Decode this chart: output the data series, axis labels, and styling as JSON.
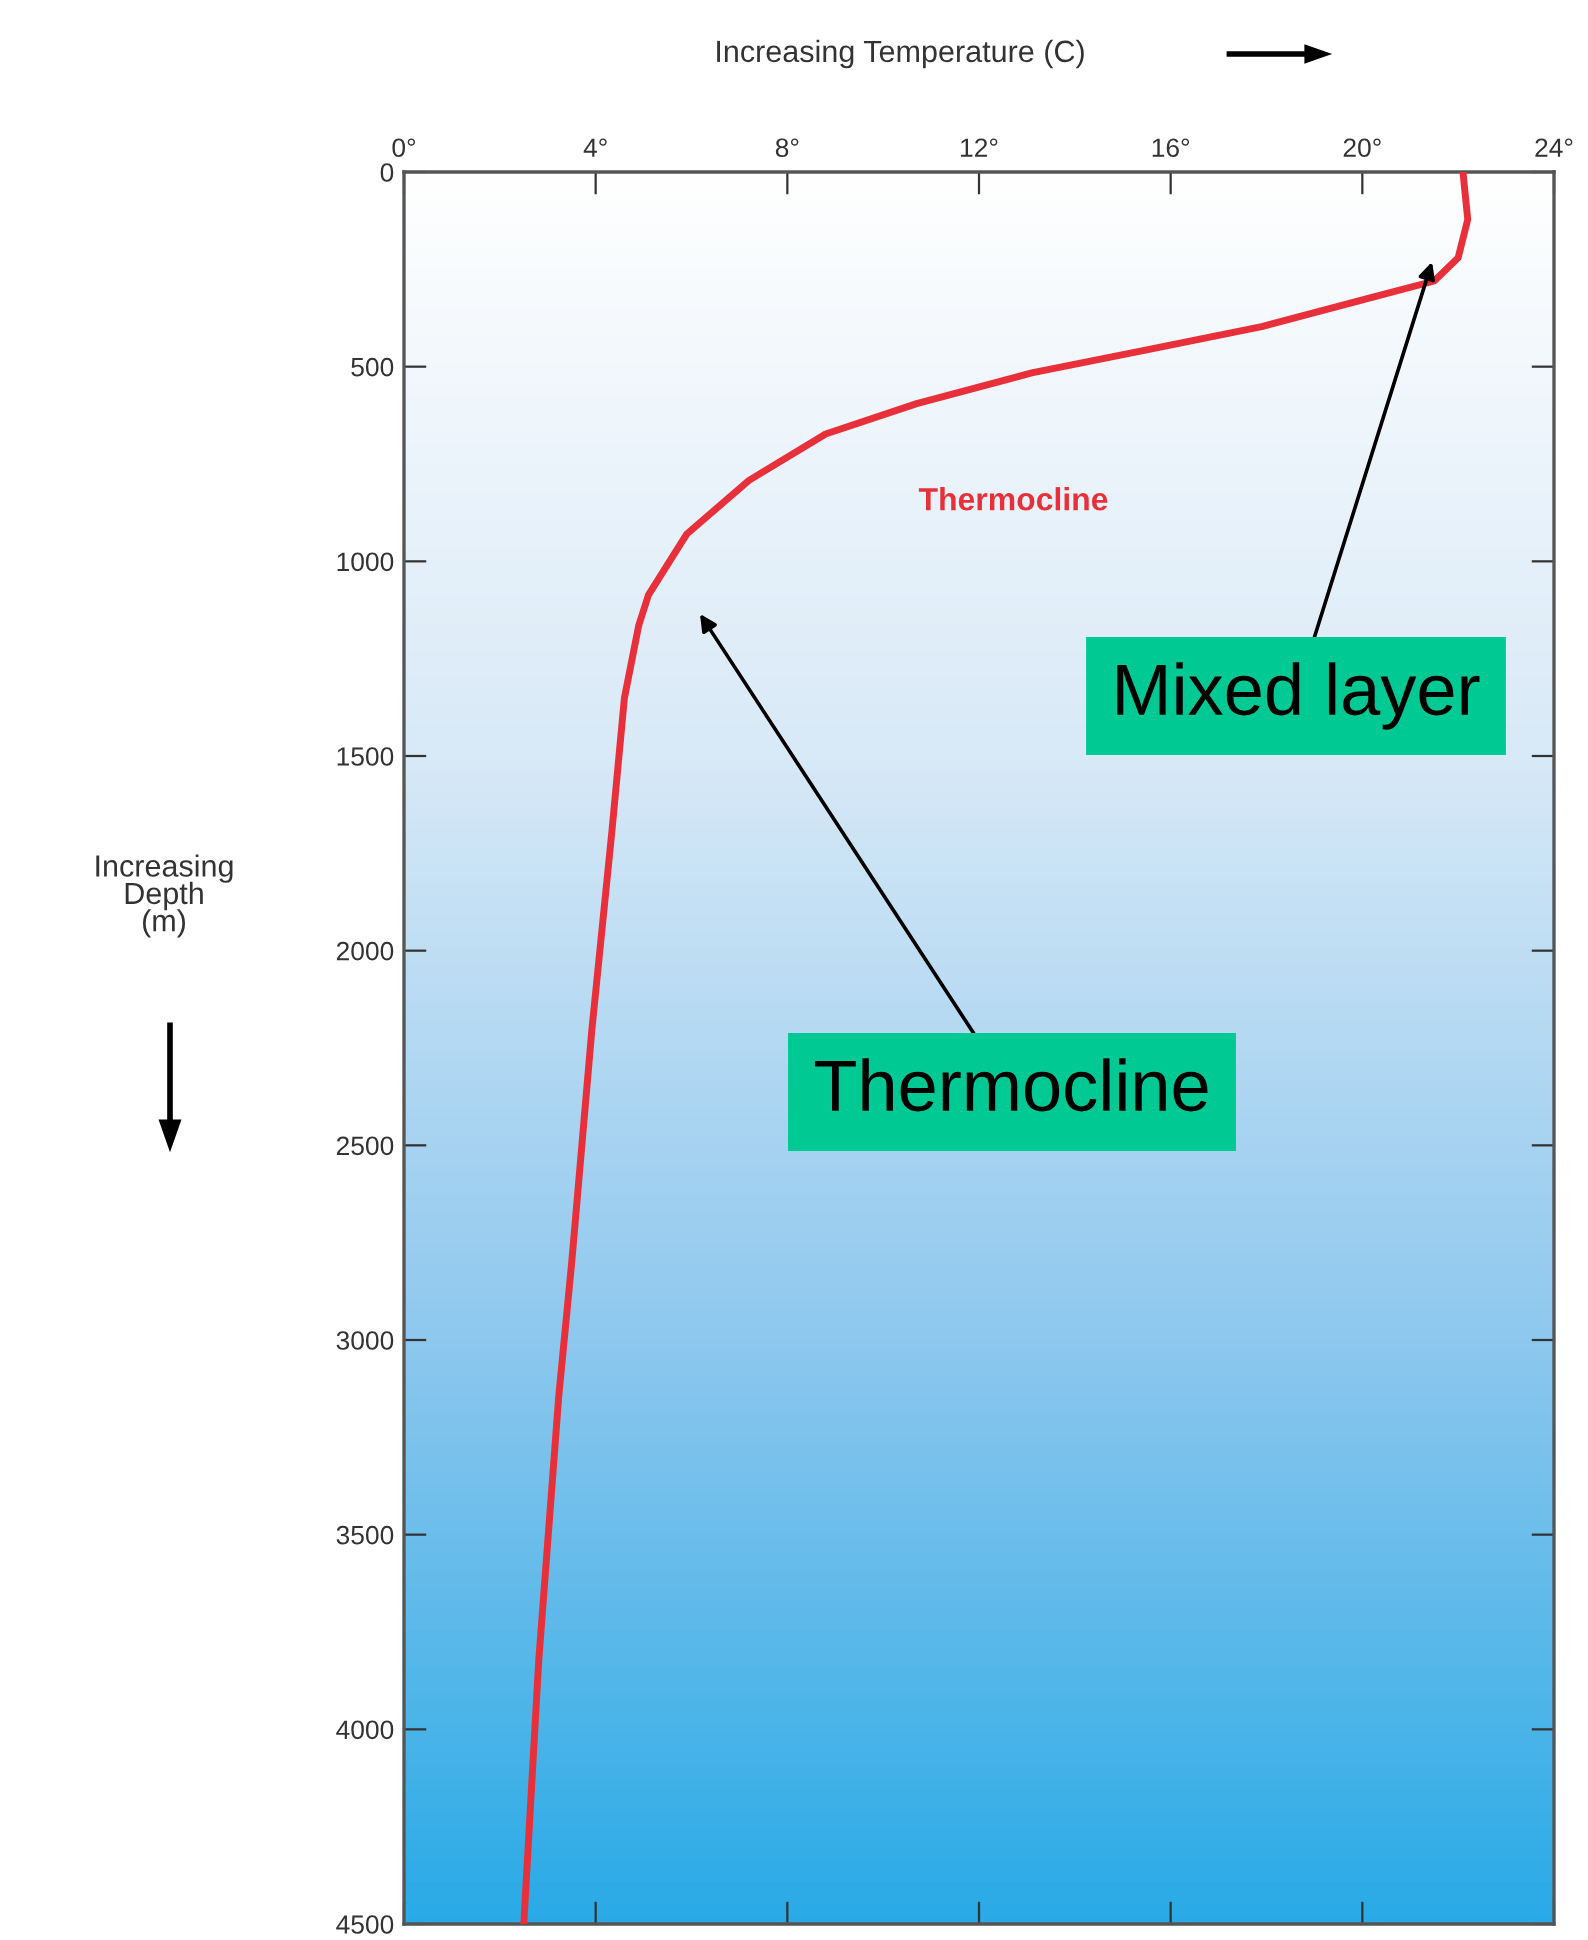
{
  "chart_data": {
    "type": "line",
    "xlabel": "Increasing Temperature (C)",
    "ylabel": "Increasing\nDepth\n(m)",
    "xlim": [
      0,
      24
    ],
    "xticks": [
      {
        "value": 0,
        "label": "0°"
      },
      {
        "value": 4,
        "label": "4°"
      },
      {
        "value": 8,
        "label": "8°"
      },
      {
        "value": 12,
        "label": "12°"
      },
      {
        "value": 16,
        "label": "16°"
      },
      {
        "value": 20,
        "label": "20°"
      },
      {
        "value": 24,
        "label": "24°"
      }
    ],
    "ylim": [
      4500,
      0
    ],
    "yticks": [
      0,
      500,
      1000,
      1500,
      2000,
      2500,
      3000,
      3500,
      4000,
      4500
    ],
    "series": [
      {
        "color": "#e8303a",
        "x": [
          22.1,
          22.2,
          22.0,
          21.5,
          20.3,
          17.9,
          15.5,
          13.1,
          10.7,
          8.8,
          7.2,
          5.9,
          5.1,
          4.9,
          4.6,
          4.34,
          3.92,
          3.5,
          3.23,
          2.81,
          2.5
        ],
        "values": [
          0,
          122,
          220,
          280,
          319,
          397,
          457,
          516,
          595,
          673,
          792,
          930,
          1087,
          1164,
          1351,
          1692,
          2204,
          2801,
          3144,
          3827,
          4500
        ]
      }
    ],
    "annotations": [
      "Thermocline",
      "Mixed layer",
      "Thermocline"
    ],
    "grid": false,
    "legend": false,
    "marker": "none",
    "line_style": "solid"
  }
}
